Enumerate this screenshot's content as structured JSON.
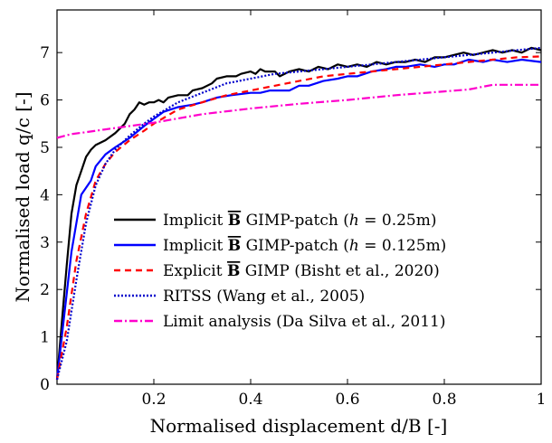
{
  "chart_data": {
    "type": "line",
    "title": "",
    "xlabel": "Normalised displacement d/B [-]",
    "ylabel": "Normalised load q/c [-]",
    "xlim": [
      0,
      1
    ],
    "ylim": [
      0,
      7.9
    ],
    "xticks": [
      {
        "value": 0.2,
        "label": "0.2"
      },
      {
        "value": 0.4,
        "label": "0.4"
      },
      {
        "value": 0.6,
        "label": "0.6"
      },
      {
        "value": 0.8,
        "label": "0.8"
      },
      {
        "value": 1,
        "label": "1"
      }
    ],
    "yticks": [
      {
        "value": 0,
        "label": "0"
      },
      {
        "value": 1,
        "label": "1"
      },
      {
        "value": 2,
        "label": "2"
      },
      {
        "value": 3,
        "label": "3"
      },
      {
        "value": 4,
        "label": "4"
      },
      {
        "value": 5,
        "label": "5"
      },
      {
        "value": 6,
        "label": "6"
      },
      {
        "value": 7,
        "label": "7"
      }
    ],
    "grid": false,
    "legend_position": "center-right",
    "series": [
      {
        "name": "Implicit B̄ GIMP-patch (h = 0.25m)",
        "legend": {
          "prefix": "Implicit ",
          "bar": "B",
          "mid": " GIMP-patch (",
          "math": "h",
          "suffix": " = 0.25m)"
        },
        "color": "#000000",
        "dash": "solid",
        "points": [
          [
            0,
            0.1
          ],
          [
            0.01,
            1.3
          ],
          [
            0.02,
            2.5
          ],
          [
            0.03,
            3.6
          ],
          [
            0.04,
            4.2
          ],
          [
            0.05,
            4.5
          ],
          [
            0.06,
            4.8
          ],
          [
            0.07,
            4.95
          ],
          [
            0.08,
            5.05
          ],
          [
            0.1,
            5.15
          ],
          [
            0.12,
            5.3
          ],
          [
            0.14,
            5.5
          ],
          [
            0.15,
            5.7
          ],
          [
            0.16,
            5.8
          ],
          [
            0.17,
            5.95
          ],
          [
            0.18,
            5.9
          ],
          [
            0.19,
            5.95
          ],
          [
            0.2,
            5.95
          ],
          [
            0.21,
            6.0
          ],
          [
            0.22,
            5.95
          ],
          [
            0.23,
            6.05
          ],
          [
            0.25,
            6.1
          ],
          [
            0.27,
            6.1
          ],
          [
            0.28,
            6.2
          ],
          [
            0.3,
            6.25
          ],
          [
            0.32,
            6.35
          ],
          [
            0.33,
            6.45
          ],
          [
            0.35,
            6.5
          ],
          [
            0.37,
            6.5
          ],
          [
            0.38,
            6.55
          ],
          [
            0.4,
            6.6
          ],
          [
            0.41,
            6.55
          ],
          [
            0.42,
            6.65
          ],
          [
            0.43,
            6.6
          ],
          [
            0.45,
            6.6
          ],
          [
            0.46,
            6.5
          ],
          [
            0.48,
            6.6
          ],
          [
            0.5,
            6.65
          ],
          [
            0.52,
            6.6
          ],
          [
            0.54,
            6.7
          ],
          [
            0.56,
            6.65
          ],
          [
            0.58,
            6.75
          ],
          [
            0.6,
            6.7
          ],
          [
            0.62,
            6.75
          ],
          [
            0.64,
            6.7
          ],
          [
            0.66,
            6.8
          ],
          [
            0.68,
            6.75
          ],
          [
            0.7,
            6.8
          ],
          [
            0.72,
            6.8
          ],
          [
            0.74,
            6.85
          ],
          [
            0.76,
            6.8
          ],
          [
            0.78,
            6.9
          ],
          [
            0.8,
            6.9
          ],
          [
            0.82,
            6.95
          ],
          [
            0.84,
            7.0
          ],
          [
            0.86,
            6.95
          ],
          [
            0.88,
            7.0
          ],
          [
            0.9,
            7.05
          ],
          [
            0.92,
            7.0
          ],
          [
            0.94,
            7.05
          ],
          [
            0.96,
            7.0
          ],
          [
            0.98,
            7.1
          ],
          [
            1.0,
            7.05
          ]
        ]
      },
      {
        "name": "Implicit B̄ GIMP-patch (h = 0.125m)",
        "legend": {
          "prefix": "Implicit ",
          "bar": "B",
          "mid": " GIMP-patch (",
          "math": "h",
          "suffix": " = 0.125m)"
        },
        "color": "#0000ff",
        "dash": "solid",
        "points": [
          [
            0,
            0.1
          ],
          [
            0.01,
            1.0
          ],
          [
            0.03,
            2.8
          ],
          [
            0.05,
            4.0
          ],
          [
            0.07,
            4.3
          ],
          [
            0.08,
            4.6
          ],
          [
            0.1,
            4.85
          ],
          [
            0.12,
            5.0
          ],
          [
            0.15,
            5.2
          ],
          [
            0.18,
            5.45
          ],
          [
            0.2,
            5.6
          ],
          [
            0.22,
            5.75
          ],
          [
            0.25,
            5.85
          ],
          [
            0.28,
            5.9
          ],
          [
            0.3,
            5.95
          ],
          [
            0.33,
            6.05
          ],
          [
            0.36,
            6.1
          ],
          [
            0.4,
            6.15
          ],
          [
            0.42,
            6.15
          ],
          [
            0.44,
            6.2
          ],
          [
            0.46,
            6.2
          ],
          [
            0.48,
            6.2
          ],
          [
            0.5,
            6.3
          ],
          [
            0.52,
            6.3
          ],
          [
            0.55,
            6.4
          ],
          [
            0.58,
            6.45
          ],
          [
            0.6,
            6.5
          ],
          [
            0.62,
            6.5
          ],
          [
            0.65,
            6.6
          ],
          [
            0.68,
            6.65
          ],
          [
            0.7,
            6.7
          ],
          [
            0.72,
            6.7
          ],
          [
            0.75,
            6.75
          ],
          [
            0.78,
            6.7
          ],
          [
            0.8,
            6.75
          ],
          [
            0.82,
            6.75
          ],
          [
            0.85,
            6.85
          ],
          [
            0.88,
            6.8
          ],
          [
            0.9,
            6.85
          ],
          [
            0.93,
            6.8
          ],
          [
            0.96,
            6.85
          ],
          [
            1.0,
            6.8
          ]
        ]
      },
      {
        "name": "Explicit B̄ GIMP (Bisht et al., 2020)",
        "legend": {
          "prefix": "Explicit ",
          "bar": "B",
          "mid": " GIMP (Bisht et al., 2020)",
          "math": "",
          "suffix": ""
        },
        "color": "#ff0000",
        "dash": "7,5",
        "points": [
          [
            0,
            0.1
          ],
          [
            0.02,
            1.2
          ],
          [
            0.04,
            2.6
          ],
          [
            0.06,
            3.6
          ],
          [
            0.08,
            4.3
          ],
          [
            0.1,
            4.65
          ],
          [
            0.12,
            4.9
          ],
          [
            0.15,
            5.15
          ],
          [
            0.18,
            5.35
          ],
          [
            0.2,
            5.5
          ],
          [
            0.25,
            5.8
          ],
          [
            0.3,
            5.95
          ],
          [
            0.35,
            6.1
          ],
          [
            0.4,
            6.2
          ],
          [
            0.45,
            6.3
          ],
          [
            0.5,
            6.4
          ],
          [
            0.55,
            6.5
          ],
          [
            0.6,
            6.55
          ],
          [
            0.65,
            6.6
          ],
          [
            0.7,
            6.65
          ],
          [
            0.75,
            6.7
          ],
          [
            0.8,
            6.75
          ],
          [
            0.85,
            6.8
          ],
          [
            0.9,
            6.85
          ],
          [
            0.95,
            6.9
          ],
          [
            1.0,
            6.92
          ]
        ]
      },
      {
        "name": "RITSS (Wang et al., 2005)",
        "legend": {
          "prefix": "RITSS (Wang et al., 2005)",
          "bar": "",
          "mid": "",
          "math": "",
          "suffix": ""
        },
        "color": "#0000cc",
        "dash": "2,2",
        "points": [
          [
            0,
            0.1
          ],
          [
            0.02,
            0.9
          ],
          [
            0.04,
            2.2
          ],
          [
            0.06,
            3.4
          ],
          [
            0.08,
            4.2
          ],
          [
            0.1,
            4.65
          ],
          [
            0.12,
            4.95
          ],
          [
            0.15,
            5.25
          ],
          [
            0.18,
            5.5
          ],
          [
            0.2,
            5.65
          ],
          [
            0.25,
            5.95
          ],
          [
            0.3,
            6.15
          ],
          [
            0.35,
            6.35
          ],
          [
            0.4,
            6.45
          ],
          [
            0.45,
            6.55
          ],
          [
            0.5,
            6.6
          ],
          [
            0.55,
            6.65
          ],
          [
            0.6,
            6.7
          ],
          [
            0.65,
            6.75
          ],
          [
            0.7,
            6.8
          ],
          [
            0.75,
            6.85
          ],
          [
            0.8,
            6.9
          ],
          [
            0.85,
            6.95
          ],
          [
            0.9,
            7.0
          ],
          [
            0.95,
            7.05
          ],
          [
            1.0,
            7.1
          ]
        ]
      },
      {
        "name": "Limit analysis (Da Silva et al., 2011)",
        "legend": {
          "prefix": "Limit analysis (Da Silva et al., 2011)",
          "bar": "",
          "mid": "",
          "math": "",
          "suffix": ""
        },
        "color": "#ff00cc",
        "dash": "9,3,2,3",
        "points": [
          [
            0,
            5.2
          ],
          [
            0.03,
            5.28
          ],
          [
            0.06,
            5.32
          ],
          [
            0.1,
            5.38
          ],
          [
            0.15,
            5.45
          ],
          [
            0.2,
            5.52
          ],
          [
            0.3,
            5.7
          ],
          [
            0.4,
            5.82
          ],
          [
            0.5,
            5.92
          ],
          [
            0.6,
            6.0
          ],
          [
            0.7,
            6.1
          ],
          [
            0.8,
            6.18
          ],
          [
            0.85,
            6.22
          ],
          [
            0.9,
            6.32
          ],
          [
            1.0,
            6.32
          ]
        ]
      }
    ]
  }
}
